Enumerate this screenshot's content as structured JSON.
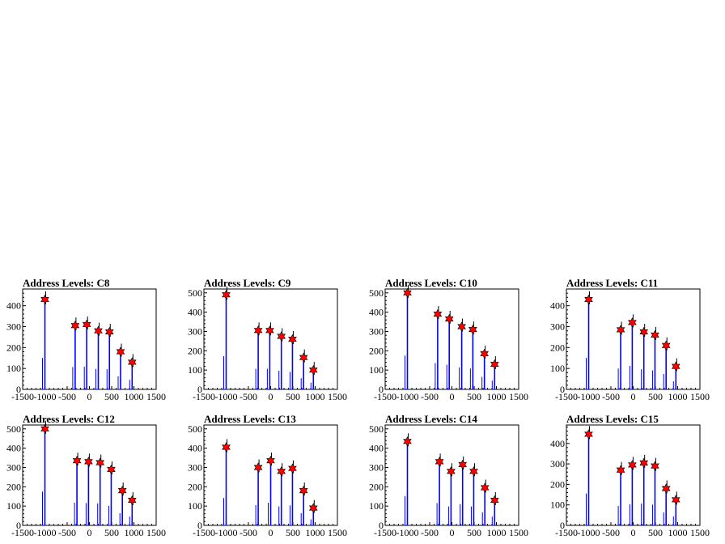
{
  "chart_data": [
    {
      "type": "bar",
      "title": "Address Levels: C8",
      "xlim": [
        -1500,
        1500
      ],
      "ylim": [
        0,
        480
      ],
      "x_ticks": [
        -1500,
        -1000,
        -500,
        0,
        500,
        1000,
        1500
      ],
      "y_ticks": [
        0,
        100,
        200,
        300,
        400
      ],
      "peaks": [
        {
          "x": -1000,
          "y": 430
        },
        {
          "x": -320,
          "y": 305
        },
        {
          "x": -60,
          "y": 310
        },
        {
          "x": 200,
          "y": 280
        },
        {
          "x": 450,
          "y": 275
        },
        {
          "x": 700,
          "y": 180
        },
        {
          "x": 960,
          "y": 130
        }
      ]
    },
    {
      "type": "bar",
      "title": "Address Levels: C9",
      "xlim": [
        -1500,
        1500
      ],
      "ylim": [
        0,
        520
      ],
      "x_ticks": [
        -1500,
        -1000,
        -500,
        0,
        500,
        1000,
        1500
      ],
      "y_ticks": [
        0,
        100,
        200,
        300,
        400,
        500
      ],
      "peaks": [
        {
          "x": -1000,
          "y": 490
        },
        {
          "x": -280,
          "y": 305
        },
        {
          "x": -20,
          "y": 305
        },
        {
          "x": 240,
          "y": 275
        },
        {
          "x": 490,
          "y": 260
        },
        {
          "x": 740,
          "y": 165
        },
        {
          "x": 960,
          "y": 100
        }
      ]
    },
    {
      "type": "bar",
      "title": "Address Levels: C10",
      "xlim": [
        -1500,
        1500
      ],
      "ylim": [
        0,
        520
      ],
      "x_ticks": [
        -1500,
        -1000,
        -500,
        0,
        500,
        1000,
        1500
      ],
      "y_ticks": [
        0,
        100,
        200,
        300,
        400,
        500
      ],
      "peaks": [
        {
          "x": -1000,
          "y": 500
        },
        {
          "x": -320,
          "y": 390
        },
        {
          "x": -60,
          "y": 365
        },
        {
          "x": 220,
          "y": 325
        },
        {
          "x": 470,
          "y": 310
        },
        {
          "x": 730,
          "y": 185
        },
        {
          "x": 960,
          "y": 130
        }
      ]
    },
    {
      "type": "bar",
      "title": "Address Levels: C11",
      "xlim": [
        -1500,
        1500
      ],
      "ylim": [
        0,
        480
      ],
      "x_ticks": [
        -1500,
        -1000,
        -500,
        0,
        500,
        1000,
        1500
      ],
      "y_ticks": [
        0,
        100,
        200,
        300,
        400
      ],
      "peaks": [
        {
          "x": -1000,
          "y": 430
        },
        {
          "x": -280,
          "y": 285
        },
        {
          "x": -20,
          "y": 320
        },
        {
          "x": 240,
          "y": 275
        },
        {
          "x": 490,
          "y": 260
        },
        {
          "x": 740,
          "y": 210
        },
        {
          "x": 960,
          "y": 110
        }
      ]
    },
    {
      "type": "bar",
      "title": "Address Levels: C12",
      "xlim": [
        -1500,
        1500
      ],
      "ylim": [
        0,
        520
      ],
      "x_ticks": [
        -1500,
        -1000,
        -500,
        0,
        500,
        1000,
        1500
      ],
      "y_ticks": [
        0,
        100,
        200,
        300,
        400,
        500
      ],
      "peaks": [
        {
          "x": -1000,
          "y": 500
        },
        {
          "x": -280,
          "y": 335
        },
        {
          "x": -20,
          "y": 330
        },
        {
          "x": 240,
          "y": 325
        },
        {
          "x": 490,
          "y": 290
        },
        {
          "x": 740,
          "y": 180
        },
        {
          "x": 960,
          "y": 130
        }
      ]
    },
    {
      "type": "bar",
      "title": "Address Levels: C13",
      "xlim": [
        -1500,
        1500
      ],
      "ylim": [
        0,
        520
      ],
      "x_ticks": [
        -1500,
        -1000,
        -500,
        0,
        500,
        1000,
        1500
      ],
      "y_ticks": [
        0,
        100,
        200,
        300,
        400,
        500
      ],
      "peaks": [
        {
          "x": -1000,
          "y": 405
        },
        {
          "x": -280,
          "y": 300
        },
        {
          "x": 0,
          "y": 335
        },
        {
          "x": 240,
          "y": 280
        },
        {
          "x": 490,
          "y": 295
        },
        {
          "x": 740,
          "y": 180
        },
        {
          "x": 960,
          "y": 90
        }
      ]
    },
    {
      "type": "bar",
      "title": "Address Levels: C14",
      "xlim": [
        -1500,
        1500
      ],
      "ylim": [
        0,
        520
      ],
      "x_ticks": [
        -1500,
        -1000,
        -500,
        0,
        500,
        1000,
        1500
      ],
      "y_ticks": [
        0,
        100,
        200,
        300,
        400,
        500
      ],
      "peaks": [
        {
          "x": -1000,
          "y": 435
        },
        {
          "x": -280,
          "y": 330
        },
        {
          "x": -20,
          "y": 280
        },
        {
          "x": 240,
          "y": 315
        },
        {
          "x": 490,
          "y": 280
        },
        {
          "x": 740,
          "y": 195
        },
        {
          "x": 960,
          "y": 130
        }
      ]
    },
    {
      "type": "bar",
      "title": "Address Levels: C15",
      "xlim": [
        -1500,
        1500
      ],
      "ylim": [
        0,
        490
      ],
      "x_ticks": [
        -1500,
        -1000,
        -500,
        0,
        500,
        1000,
        1500
      ],
      "y_ticks": [
        0,
        100,
        200,
        300,
        400
      ],
      "peaks": [
        {
          "x": -1000,
          "y": 445
        },
        {
          "x": -280,
          "y": 270
        },
        {
          "x": -20,
          "y": 295
        },
        {
          "x": 240,
          "y": 305
        },
        {
          "x": 490,
          "y": 290
        },
        {
          "x": 740,
          "y": 180
        },
        {
          "x": 960,
          "y": 125
        }
      ]
    }
  ],
  "colors": {
    "bar": "#0000ff",
    "marker_fill": "#ff0000",
    "marker_edge": "#000000",
    "axis": "#000000"
  }
}
